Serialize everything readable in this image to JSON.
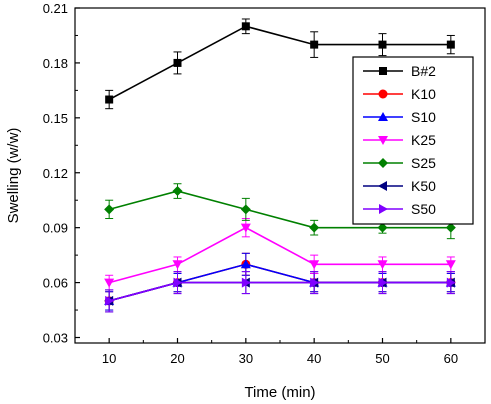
{
  "chart_data": {
    "type": "line",
    "xlabel": "Time (min)",
    "ylabel": "Swelling (w/w)",
    "xlim": [
      5,
      65
    ],
    "ylim": [
      0.027,
      0.21
    ],
    "xticks": [
      10,
      20,
      30,
      40,
      50,
      60
    ],
    "yticks": [
      0.03,
      0.06,
      0.09,
      0.12,
      0.15,
      0.18,
      0.21
    ],
    "x": [
      10,
      20,
      30,
      40,
      50,
      60
    ],
    "legend_position": "top-right",
    "grid": false,
    "series": [
      {
        "name": "B#2",
        "color": "#000000",
        "marker": "square",
        "values": [
          0.16,
          0.18,
          0.2,
          0.19,
          0.19,
          0.19
        ],
        "errors": [
          0.005,
          0.006,
          0.004,
          0.007,
          0.006,
          0.005
        ]
      },
      {
        "name": "K10",
        "color": "#ff0000",
        "marker": "circle",
        "values": [
          0.05,
          0.06,
          0.07,
          0.06,
          0.06,
          0.06
        ],
        "errors": [
          0.005,
          0.005,
          0.006,
          0.005,
          0.005,
          0.005
        ]
      },
      {
        "name": "S10",
        "color": "#0000ff",
        "marker": "triangle-up",
        "values": [
          0.05,
          0.06,
          0.07,
          0.06,
          0.06,
          0.06
        ],
        "errors": [
          0.005,
          0.005,
          0.006,
          0.005,
          0.005,
          0.005
        ]
      },
      {
        "name": "K25",
        "color": "#ff00ff",
        "marker": "triangle-down",
        "values": [
          0.06,
          0.07,
          0.09,
          0.07,
          0.07,
          0.07
        ],
        "errors": [
          0.004,
          0.004,
          0.005,
          0.005,
          0.004,
          0.004
        ]
      },
      {
        "name": "S25",
        "color": "#008000",
        "marker": "diamond",
        "values": [
          0.1,
          0.11,
          0.1,
          0.09,
          0.09,
          0.09
        ],
        "errors": [
          0.005,
          0.004,
          0.006,
          0.004,
          0.003,
          0.006
        ]
      },
      {
        "name": "K50",
        "color": "#000080",
        "marker": "triangle-left",
        "values": [
          0.05,
          0.06,
          0.06,
          0.06,
          0.06,
          0.06
        ],
        "errors": [
          0.006,
          0.006,
          0.006,
          0.006,
          0.006,
          0.006
        ]
      },
      {
        "name": "S50",
        "color": "#8000ff",
        "marker": "triangle-right",
        "values": [
          0.05,
          0.06,
          0.06,
          0.06,
          0.06,
          0.06
        ],
        "errors": [
          0.006,
          0.006,
          0.006,
          0.006,
          0.006,
          0.006
        ]
      }
    ]
  }
}
